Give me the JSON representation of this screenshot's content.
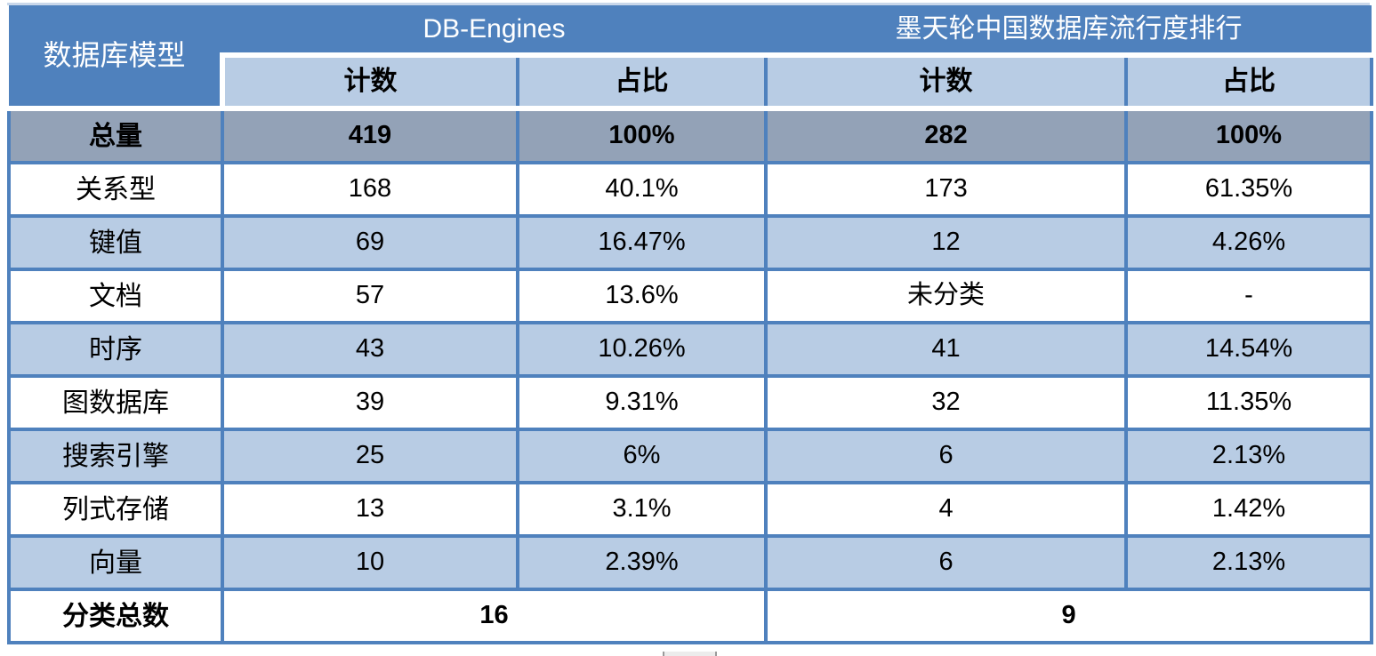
{
  "colors": {
    "header_blue": "#4f81bd",
    "band_light_blue": "#b8cce4",
    "total_row_gray": "#93a2b7",
    "border_blue": "#4f81bd",
    "text_black": "#000000",
    "text_white": "#ffffff"
  },
  "chart_data": {
    "type": "table",
    "title": "",
    "corner_header": "数据库模型",
    "groups": [
      {
        "label": "DB-Engines",
        "subcolumns": [
          "计数",
          "占比"
        ]
      },
      {
        "label": "墨天轮中国数据库流行度排行",
        "subcolumns": [
          "计数",
          "占比"
        ]
      }
    ],
    "rows": [
      {
        "label": "总量",
        "values": [
          "419",
          "100%",
          "282",
          "100%"
        ]
      },
      {
        "label": "关系型",
        "values": [
          "168",
          "40.1%",
          "173",
          "61.35%"
        ]
      },
      {
        "label": "键值",
        "values": [
          "69",
          "16.47%",
          "12",
          "4.26%"
        ]
      },
      {
        "label": "文档",
        "values": [
          "57",
          "13.6%",
          "未分类",
          "-"
        ]
      },
      {
        "label": "时序",
        "values": [
          "43",
          "10.26%",
          "41",
          "14.54%"
        ]
      },
      {
        "label": "图数据库",
        "values": [
          "39",
          "9.31%",
          "32",
          "11.35%"
        ]
      },
      {
        "label": "搜索引擎",
        "values": [
          "25",
          "6%",
          "6",
          "2.13%"
        ]
      },
      {
        "label": "列式存储",
        "values": [
          "13",
          "3.1%",
          "4",
          "1.42%"
        ]
      },
      {
        "label": "向量",
        "values": [
          "10",
          "2.39%",
          "6",
          "2.13%"
        ]
      }
    ],
    "footer": {
      "label": "分类总数",
      "values": [
        "16",
        "9"
      ]
    }
  }
}
